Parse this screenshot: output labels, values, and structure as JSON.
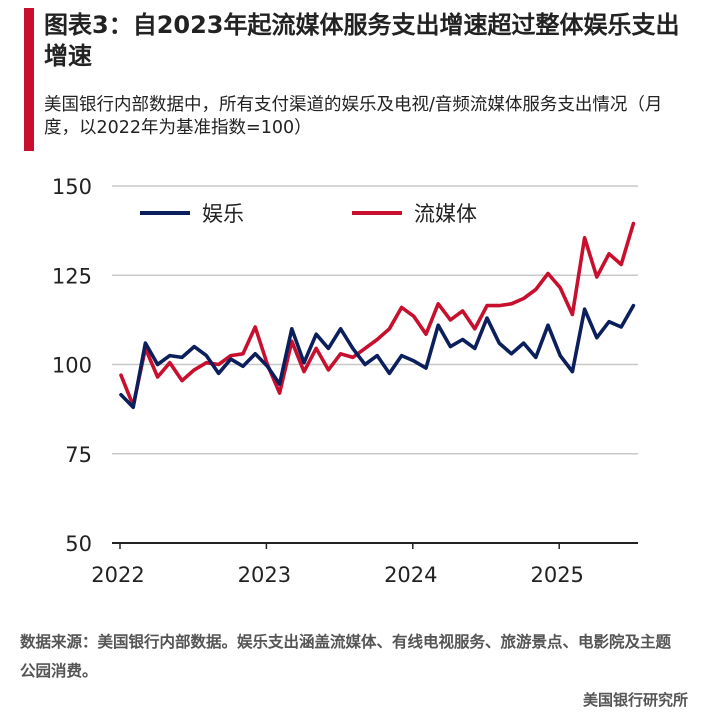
{
  "header": {
    "title": "图表3：自2023年起流媒体服务支出增速超过整体娱乐支出增速",
    "subtitle": "美国银行内部数据中，所有支付渠道的娱乐及电视/音频流媒体服务支出情况（月度，以2022年为基准指数=100）",
    "accent_color": "#c8102e"
  },
  "chart_data": {
    "type": "line",
    "title": "",
    "xlabel": "",
    "ylabel": "",
    "ylim": [
      50,
      150
    ],
    "yticks": [
      50,
      75,
      100,
      125,
      150
    ],
    "xtick_labels": [
      "2022",
      "2023",
      "2024",
      "2025"
    ],
    "grid": true,
    "legend_position": "top-left",
    "x_start": "2022-01",
    "series": [
      {
        "name": "娱乐",
        "color": "#0b1f5c",
        "values": [
          91.5,
          88,
          106,
          100,
          102.5,
          102,
          105,
          102.5,
          97.5,
          101.5,
          99.5,
          103,
          99.5,
          94.5,
          110,
          100.5,
          108.5,
          104.5,
          110,
          104.5,
          100,
          102.5,
          97.5,
          102.5,
          101,
          99,
          111,
          105,
          107,
          104.5,
          113,
          106,
          103,
          106,
          102,
          111,
          102.5,
          98,
          115.5,
          107.5,
          112,
          110.5,
          116.5
        ]
      },
      {
        "name": "流媒体",
        "color": "#c8102e",
        "values": [
          97,
          88.5,
          104.5,
          96.5,
          100.5,
          95.5,
          98.5,
          100.5,
          100,
          102.5,
          103,
          110.5,
          100,
          92,
          106.5,
          98,
          104.5,
          98.5,
          103,
          102,
          104.5,
          107,
          110,
          116,
          113.5,
          108.5,
          117,
          112.5,
          115,
          110,
          116.5,
          116.5,
          117,
          118.5,
          121,
          125.5,
          121.5,
          114,
          135.5,
          124.5,
          131,
          128,
          139.5
        ]
      }
    ]
  },
  "footer": {
    "note": "数据来源：美国银行内部数据。娱乐支出涵盖流媒体、有线电视服务、旅游景点、电影院及主题公园消费。",
    "source_org": "美国银行研究所"
  }
}
